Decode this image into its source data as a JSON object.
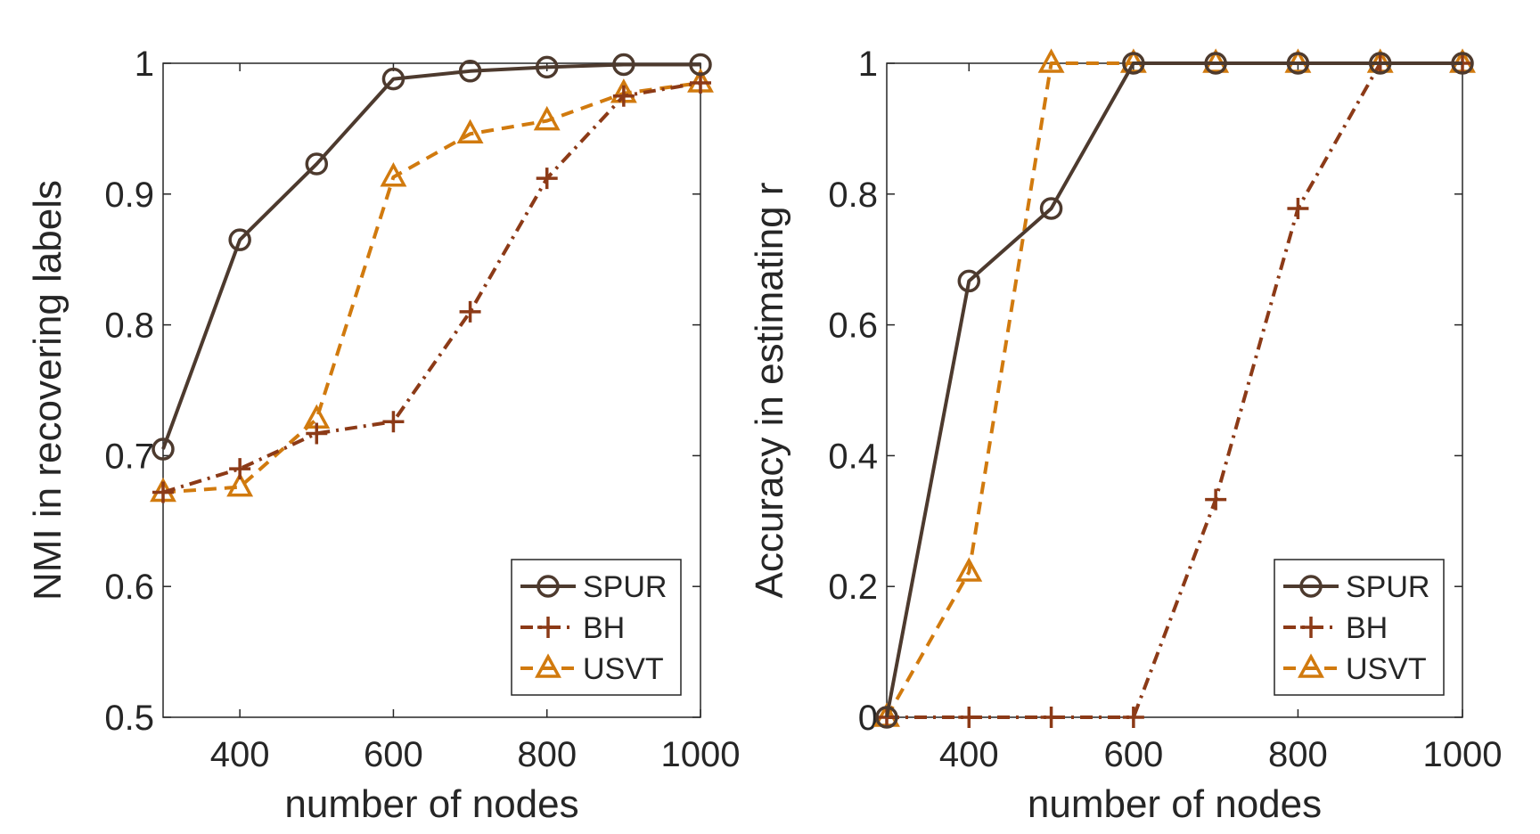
{
  "chart_data": [
    {
      "type": "line",
      "xlabel": "number of nodes",
      "ylabel": "NMI in recovering labels",
      "x": [
        300,
        400,
        500,
        600,
        700,
        800,
        900,
        1000
      ],
      "xlim": [
        300,
        1000
      ],
      "ylim": [
        0.5,
        1
      ],
      "xticks": [
        400,
        600,
        800,
        1000
      ],
      "xtick_labels": [
        "400",
        "600",
        "800",
        "1000"
      ],
      "yticks": [
        0.5,
        0.6,
        0.7,
        0.8,
        0.9,
        1
      ],
      "ytick_labels": [
        "0.5",
        "0.6",
        "0.7",
        "0.8",
        "0.9",
        "1"
      ],
      "grid": false,
      "legend_position": "bottom-right",
      "series": [
        {
          "name": "SPUR",
          "marker": "circle",
          "style": "solid",
          "color": "#4d3a2e",
          "values": [
            0.705,
            0.865,
            0.923,
            0.988,
            0.994,
            0.997,
            0.999,
            0.999
          ]
        },
        {
          "name": "BH",
          "marker": "plus",
          "style": "dashdot",
          "color": "#8c3a17",
          "values": [
            0.672,
            0.69,
            0.717,
            0.726,
            0.81,
            0.912,
            0.975,
            0.985
          ]
        },
        {
          "name": "USVT",
          "marker": "triangle",
          "style": "dashed",
          "color": "#d17a0e",
          "values": [
            0.672,
            0.676,
            0.728,
            0.913,
            0.946,
            0.956,
            0.977,
            0.985
          ]
        }
      ]
    },
    {
      "type": "line",
      "xlabel": "number of nodes",
      "ylabel": "Accuracy in estimating r",
      "x": [
        300,
        400,
        500,
        600,
        700,
        800,
        900,
        1000
      ],
      "xlim": [
        300,
        1000
      ],
      "ylim": [
        0,
        1
      ],
      "xticks": [
        400,
        600,
        800,
        1000
      ],
      "xtick_labels": [
        "400",
        "600",
        "800",
        "1000"
      ],
      "yticks": [
        0,
        0.2,
        0.4,
        0.6,
        0.8,
        1
      ],
      "ytick_labels": [
        "0",
        "0.2",
        "0.4",
        "0.6",
        "0.8",
        "1"
      ],
      "grid": false,
      "legend_position": "bottom-right",
      "series": [
        {
          "name": "SPUR",
          "marker": "circle",
          "style": "solid",
          "color": "#4d3a2e",
          "values": [
            0,
            0.667,
            0.778,
            1,
            1,
            1,
            1,
            1
          ]
        },
        {
          "name": "BH",
          "marker": "plus",
          "style": "dashdot",
          "color": "#8c3a17",
          "values": [
            0,
            0,
            0,
            0,
            0.333,
            0.778,
            1,
            1
          ]
        },
        {
          "name": "USVT",
          "marker": "triangle",
          "style": "dashed",
          "color": "#d17a0e",
          "values": [
            0,
            0.222,
            1,
            1,
            1,
            1,
            1,
            1
          ]
        }
      ]
    }
  ]
}
